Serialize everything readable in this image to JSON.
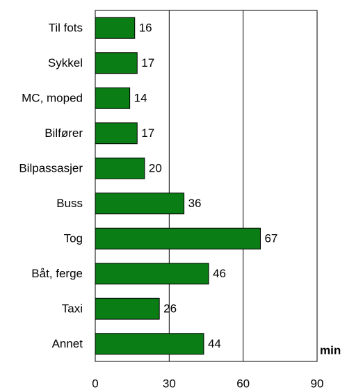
{
  "chart_data": {
    "type": "bar",
    "orientation": "horizontal",
    "categories": [
      "Til fots",
      "Sykkel",
      "MC, moped",
      "Bilfører",
      "Bilpassasjer",
      "Buss",
      "Tog",
      "Båt, ferge",
      "Taxi",
      "Annet"
    ],
    "values": [
      16,
      17,
      14,
      17,
      20,
      36,
      67,
      46,
      26,
      44
    ],
    "color": "#0a7d14",
    "x_label": "min",
    "xlim": [
      0,
      90
    ],
    "xticks": [
      0,
      30,
      60,
      90
    ],
    "grid": true
  }
}
